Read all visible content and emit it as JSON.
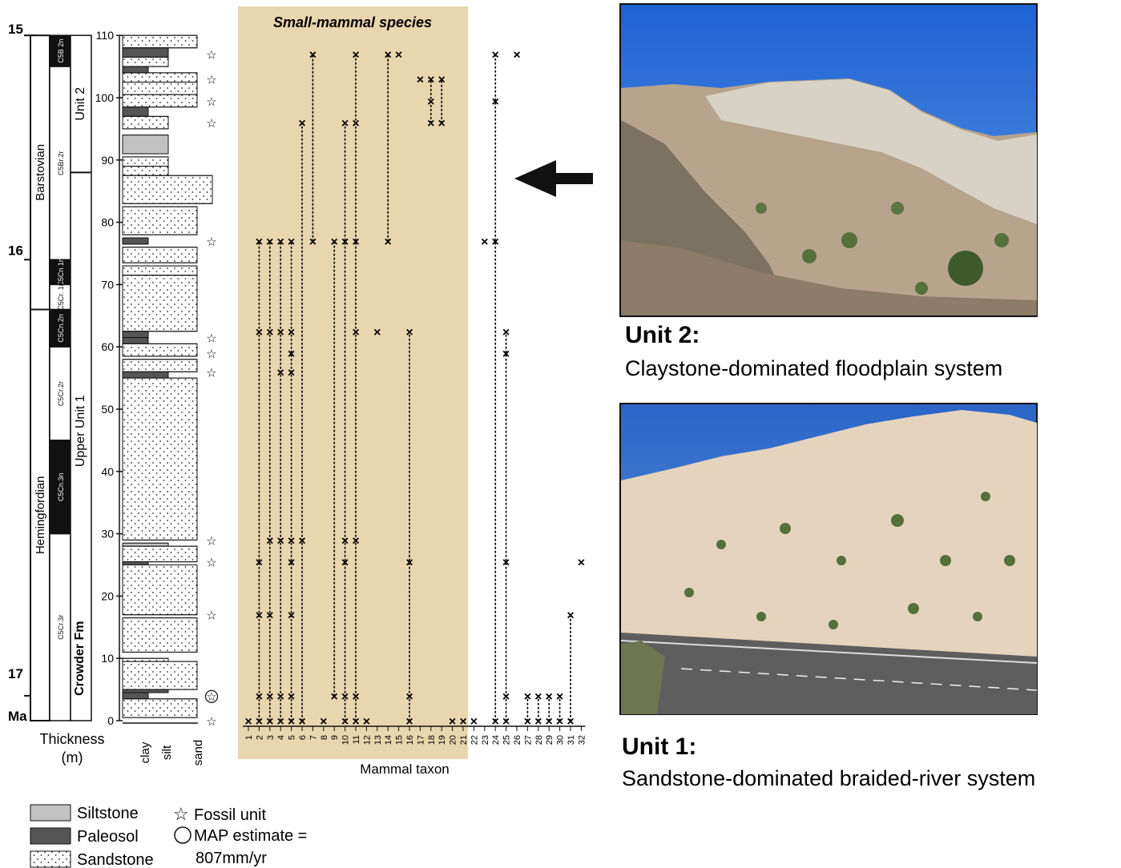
{
  "age_axis": {
    "ticks": [
      {
        "label": "15",
        "level": 15
      },
      {
        "label": "16",
        "level": 16
      },
      {
        "label": "17",
        "level": 17
      }
    ],
    "unit": "Ma"
  },
  "stages": [
    {
      "label": "Barstovian",
      "top_m": 110,
      "bottom_m": 66
    },
    {
      "label": "Hemingfordian",
      "top_m": 66,
      "bottom_m": 0
    }
  ],
  "chrons": [
    {
      "label": "C5B 2n",
      "top_m": 110,
      "bottom_m": 105,
      "polarity": "normal"
    },
    {
      "label": "C5Br.2r",
      "top_m": 105,
      "bottom_m": 74,
      "polarity": "reversed"
    },
    {
      "label": "C5Cn 1n",
      "top_m": 74,
      "bottom_m": 70,
      "polarity": "normal"
    },
    {
      "label": "C5Cr. 1r",
      "top_m": 70,
      "bottom_m": 66,
      "polarity": "reversed"
    },
    {
      "label": "C5Cn.2n",
      "top_m": 66,
      "bottom_m": 60,
      "polarity": "normal"
    },
    {
      "label": "C5Cr.2r",
      "top_m": 60,
      "bottom_m": 45,
      "polarity": "reversed"
    },
    {
      "label": "C5Cn.3n",
      "top_m": 45,
      "bottom_m": 30,
      "polarity": "normal"
    },
    {
      "label": "C5Cr.3r",
      "top_m": 30,
      "bottom_m": 0,
      "polarity": "reversed"
    }
  ],
  "units": [
    {
      "label": "Unit 2",
      "top_m": 110,
      "bottom_m": 88
    },
    {
      "label": "Upper Unit 1",
      "top_m": 88,
      "bottom_m": 5
    },
    {
      "label": "Crowder Fm",
      "top_m": 20,
      "bottom_m": 0
    }
  ],
  "thickness_axis": {
    "ticks": [
      0,
      10,
      20,
      30,
      40,
      50,
      60,
      70,
      80,
      90,
      100,
      110
    ],
    "label_line1": "Thickness",
    "label_line2": "(m)"
  },
  "grain_size_labels": [
    "clay",
    "silt",
    "sand"
  ],
  "lithology_beds": [
    {
      "top": 110,
      "bottom": 108,
      "lith": "sandstone",
      "grain": "sand"
    },
    {
      "top": 108,
      "bottom": 106.5,
      "lith": "paleosol",
      "grain": "silt"
    },
    {
      "top": 106.5,
      "bottom": 105,
      "lith": "sandstone",
      "grain": "silt"
    },
    {
      "top": 105,
      "bottom": 104,
      "lith": "paleosol",
      "grain": "clay"
    },
    {
      "top": 104,
      "bottom": 102.5,
      "lith": "sandstone",
      "grain": "sand"
    },
    {
      "top": 102.5,
      "bottom": 100.5,
      "lith": "sandstone",
      "grain": "sand"
    },
    {
      "top": 100.5,
      "bottom": 98.5,
      "lith": "sandstone",
      "grain": "sand"
    },
    {
      "top": 98.5,
      "bottom": 97,
      "lith": "paleosol",
      "grain": "clay"
    },
    {
      "top": 97,
      "bottom": 95,
      "lith": "sandstone",
      "grain": "silt"
    },
    {
      "top": 94,
      "bottom": 91,
      "lith": "siltstone",
      "grain": "silt"
    },
    {
      "top": 90.5,
      "bottom": 89,
      "lith": "sandstone",
      "grain": "silt"
    },
    {
      "top": 89,
      "bottom": 87.5,
      "lith": "sandstone",
      "grain": "silt"
    },
    {
      "top": 87.5,
      "bottom": 83,
      "lith": "sandstone",
      "grain": "sand"
    },
    {
      "top": 82.5,
      "bottom": 78,
      "lith": "sandstone",
      "grain": "sand"
    },
    {
      "top": 77.5,
      "bottom": 76.5,
      "lith": "paleosol",
      "grain": "clay"
    },
    {
      "top": 76,
      "bottom": 73.5,
      "lith": "sandstone",
      "grain": "sand"
    },
    {
      "top": 73,
      "bottom": 71.5,
      "lith": "sandstone",
      "grain": "sand"
    },
    {
      "top": 71.5,
      "bottom": 62.5,
      "lith": "sandstone",
      "grain": "sand"
    },
    {
      "top": 62.5,
      "bottom": 61.5,
      "lith": "paleosol",
      "grain": "clay"
    },
    {
      "top": 61.5,
      "bottom": 60.5,
      "lith": "paleosol",
      "grain": "clay"
    },
    {
      "top": 60.5,
      "bottom": 58.5,
      "lith": "sandstone",
      "grain": "sand"
    },
    {
      "top": 58,
      "bottom": 56,
      "lith": "sandstone",
      "grain": "sand"
    },
    {
      "top": 56,
      "bottom": 55,
      "lith": "paleosol",
      "grain": "silt"
    },
    {
      "top": 55,
      "bottom": 29,
      "lith": "sandstone",
      "grain": "sand"
    },
    {
      "top": 28.5,
      "bottom": 28,
      "lith": "siltstone",
      "grain": "silt"
    },
    {
      "top": 28,
      "bottom": 25.5,
      "lith": "sandstone",
      "grain": "sand"
    },
    {
      "top": 25.5,
      "bottom": 25,
      "lith": "paleosol",
      "grain": "clay"
    },
    {
      "top": 25,
      "bottom": 17,
      "lith": "sandstone",
      "grain": "sand"
    },
    {
      "top": 16.5,
      "bottom": 11,
      "lith": "sandstone",
      "grain": "sand"
    },
    {
      "top": 10,
      "bottom": 9.5,
      "lith": "sandstone",
      "grain": "silt"
    },
    {
      "top": 9.5,
      "bottom": 5,
      "lith": "sandstone",
      "grain": "sand"
    },
    {
      "top": 5,
      "bottom": 4.5,
      "lith": "paleosol",
      "grain": "silt"
    },
    {
      "top": 4.5,
      "bottom": 3.5,
      "lith": "paleosol",
      "grain": "clay"
    },
    {
      "top": 3.5,
      "bottom": 0.5,
      "lith": "sandstone",
      "grain": "sand"
    }
  ],
  "fossil_units_m": [
    0,
    4,
    17,
    25.5,
    29,
    56,
    59,
    61.5,
    77,
    96,
    99.5,
    103,
    107
  ],
  "map_estimate_m": 4,
  "species_panel": {
    "title": "Small-mammal species",
    "shaded_taxa_max": 21,
    "shade_color": "#e8d6ae"
  },
  "taxon_axis": {
    "label": "Mammal taxon",
    "ticks": [
      1,
      2,
      3,
      4,
      5,
      6,
      7,
      8,
      9,
      10,
      11,
      12,
      13,
      14,
      15,
      16,
      17,
      18,
      19,
      20,
      21,
      22,
      23,
      24,
      25,
      26,
      27,
      28,
      29,
      30,
      31,
      32
    ]
  },
  "occurrences": [
    {
      "taxon": 1,
      "levels_m": [
        0
      ]
    },
    {
      "taxon": 2,
      "levels_m": [
        0,
        4,
        17,
        25.5,
        62.5,
        77
      ]
    },
    {
      "taxon": 3,
      "levels_m": [
        0,
        4,
        17,
        29,
        62.5,
        77
      ]
    },
    {
      "taxon": 4,
      "levels_m": [
        0,
        4,
        29,
        56,
        62.5,
        77
      ]
    },
    {
      "taxon": 5,
      "levels_m": [
        0,
        4,
        17,
        25.5,
        29,
        56,
        59,
        62.5,
        77
      ]
    },
    {
      "taxon": 6,
      "levels_m": [
        0,
        29,
        96
      ]
    },
    {
      "taxon": 7,
      "levels_m": [
        77,
        107
      ]
    },
    {
      "taxon": 8,
      "levels_m": [
        0
      ]
    },
    {
      "taxon": 9,
      "levels_m": [
        4,
        77
      ]
    },
    {
      "taxon": 10,
      "levels_m": [
        0,
        4,
        25.5,
        29,
        77,
        96
      ]
    },
    {
      "taxon": 11,
      "levels_m": [
        0,
        4,
        29,
        62.5,
        77,
        96,
        107
      ]
    },
    {
      "taxon": 12,
      "levels_m": [
        0
      ]
    },
    {
      "taxon": 13,
      "levels_m": [
        62.5
      ]
    },
    {
      "taxon": 14,
      "levels_m": [
        77,
        107
      ]
    },
    {
      "taxon": 15,
      "levels_m": [
        107
      ]
    },
    {
      "taxon": 16,
      "levels_m": [
        0,
        4,
        25.5,
        62.5
      ]
    },
    {
      "taxon": 17,
      "levels_m": [
        103
      ]
    },
    {
      "taxon": 18,
      "levels_m": [
        96,
        99.5,
        103
      ]
    },
    {
      "taxon": 19,
      "levels_m": [
        96,
        103
      ]
    },
    {
      "taxon": 20,
      "levels_m": [
        0
      ]
    },
    {
      "taxon": 21,
      "levels_m": [
        0
      ]
    },
    {
      "taxon": 22,
      "levels_m": [
        0
      ]
    },
    {
      "taxon": 23,
      "levels_m": [
        77
      ]
    },
    {
      "taxon": 24,
      "levels_m": [
        0,
        77,
        99.5,
        107
      ]
    },
    {
      "taxon": 25,
      "levels_m": [
        0,
        4,
        25.5,
        59,
        62.5
      ]
    },
    {
      "taxon": 26,
      "levels_m": [
        107
      ]
    },
    {
      "taxon": 27,
      "levels_m": [
        0,
        4
      ]
    },
    {
      "taxon": 28,
      "levels_m": [
        0,
        4
      ]
    },
    {
      "taxon": 29,
      "levels_m": [
        0,
        4
      ]
    },
    {
      "taxon": 30,
      "levels_m": [
        0,
        4
      ]
    },
    {
      "taxon": 31,
      "levels_m": [
        0,
        17
      ]
    },
    {
      "taxon": 32,
      "levels_m": [
        25.5
      ]
    }
  ],
  "arrow_target": "Unit 2 photo",
  "photos": [
    {
      "id": "unit2",
      "title": "Unit 2:",
      "subtitle": "Claystone-dominated floodplain system"
    },
    {
      "id": "unit1",
      "title": "Unit 1:",
      "subtitle": "Sandstone-dominated braided-river system"
    }
  ],
  "legend": {
    "siltstone": "Siltstone",
    "paleosol": "Paleosol",
    "sandstone": "Sandstone",
    "fossil_unit": "Fossil unit",
    "map_line1": "MAP estimate =",
    "map_line2": "807mm/yr"
  },
  "colors": {
    "siltstone": "#c2c2c2",
    "paleosol": "#555555",
    "panel_shade": "#e8d6ae",
    "sky": "#2a6fd6"
  }
}
